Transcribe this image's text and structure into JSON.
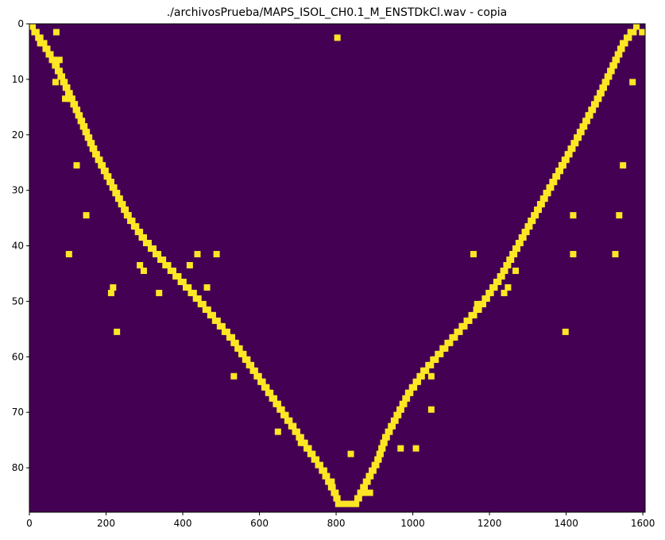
{
  "chart_data": {
    "type": "heatmap",
    "title": "./archivosPrueba/MAPS_ISOL_CH0.1_M_ENSTDkCl.wav - copia",
    "xlabel": "",
    "ylabel": "",
    "xlim": [
      0,
      1606
    ],
    "ylim": [
      88,
      0
    ],
    "x_ticks": [
      0,
      200,
      400,
      600,
      800,
      1000,
      1200,
      1400,
      1600
    ],
    "y_ticks": [
      0,
      10,
      20,
      30,
      40,
      50,
      60,
      70,
      80
    ],
    "colors": {
      "background": "#440154",
      "active": "#fde725"
    },
    "descending_path": [
      [
        0,
        0
      ],
      [
        30,
        3
      ],
      [
        55,
        6
      ],
      [
        70,
        8
      ],
      [
        90,
        11
      ],
      [
        110,
        14
      ],
      [
        135,
        18
      ],
      [
        160,
        22
      ],
      [
        190,
        26
      ],
      [
        220,
        30
      ],
      [
        250,
        34
      ],
      [
        290,
        38
      ],
      [
        340,
        42
      ],
      [
        380,
        45
      ],
      [
        420,
        48
      ],
      [
        470,
        52
      ],
      [
        520,
        56
      ],
      [
        560,
        60
      ],
      [
        600,
        64
      ],
      [
        640,
        68
      ],
      [
        680,
        72
      ],
      [
        720,
        76
      ],
      [
        760,
        80
      ],
      [
        790,
        84
      ],
      [
        800,
        86
      ],
      [
        840,
        86
      ]
    ],
    "ascending_path": [
      [
        840,
        86
      ],
      [
        870,
        82
      ],
      [
        900,
        78
      ],
      [
        920,
        74
      ],
      [
        950,
        70
      ],
      [
        980,
        66
      ],
      [
        1020,
        62
      ],
      [
        1070,
        58
      ],
      [
        1120,
        54
      ],
      [
        1170,
        50
      ],
      [
        1220,
        45
      ],
      [
        1260,
        40
      ],
      [
        1300,
        35
      ],
      [
        1340,
        30
      ],
      [
        1380,
        25
      ],
      [
        1420,
        20
      ],
      [
        1450,
        16
      ],
      [
        1480,
        12
      ],
      [
        1500,
        9
      ],
      [
        1520,
        6
      ],
      [
        1540,
        3
      ],
      [
        1560,
        1
      ],
      [
        1575,
        0
      ]
    ],
    "scattered_points": [
      [
        62,
        1
      ],
      [
        20,
        3
      ],
      [
        28,
        3
      ],
      [
        70,
        6
      ],
      [
        60,
        10
      ],
      [
        85,
        13
      ],
      [
        95,
        13
      ],
      [
        115,
        25
      ],
      [
        140,
        34
      ],
      [
        95,
        41
      ],
      [
        210,
        47
      ],
      [
        205,
        48
      ],
      [
        280,
        43
      ],
      [
        290,
        44
      ],
      [
        330,
        48
      ],
      [
        220,
        55
      ],
      [
        410,
        43
      ],
      [
        430,
        41
      ],
      [
        455,
        47
      ],
      [
        480,
        41
      ],
      [
        525,
        63
      ],
      [
        640,
        73
      ],
      [
        700,
        75
      ],
      [
        780,
        82
      ],
      [
        830,
        77
      ],
      [
        865,
        84
      ],
      [
        880,
        84
      ],
      [
        960,
        76
      ],
      [
        1000,
        76
      ],
      [
        1040,
        69
      ],
      [
        795,
        2
      ],
      [
        1590,
        1
      ],
      [
        1550,
        2
      ],
      [
        1565,
        10
      ],
      [
        1540,
        25
      ],
      [
        1530,
        34
      ],
      [
        1410,
        34
      ],
      [
        1390,
        55
      ],
      [
        1410,
        41
      ],
      [
        1520,
        41
      ],
      [
        1240,
        47
      ],
      [
        1260,
        44
      ],
      [
        1230,
        48
      ],
      [
        1150,
        41
      ],
      [
        1050,
        60
      ],
      [
        1040,
        63
      ],
      [
        1160,
        50
      ]
    ]
  }
}
